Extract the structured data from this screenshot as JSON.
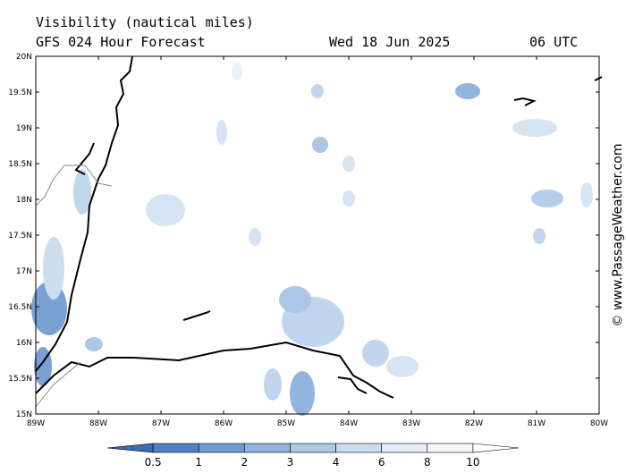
{
  "header": {
    "title": "Visibility (nautical miles)",
    "subtitle": "GFS 024 Hour Forecast",
    "date": "Wed 18 Jun 2025",
    "time": "06 UTC"
  },
  "map": {
    "lat_labels": [
      "20N",
      "19.5N",
      "19N",
      "18.5N",
      "18N",
      "17.5N",
      "17N",
      "16.5N",
      "16N",
      "15.5N",
      "15N"
    ],
    "lon_labels": [
      "89W",
      "88W",
      "87W",
      "86W",
      "85W",
      "84W",
      "83W",
      "82W",
      "81W",
      "80W"
    ]
  },
  "colorbar": {
    "levels": [
      0.5,
      1,
      2,
      3,
      4,
      6,
      8,
      10
    ],
    "colors": [
      "#3a6db2",
      "#4f82c4",
      "#6f9bd2",
      "#8fb3de",
      "#adc8e8",
      "#cadcf0",
      "#e3edf8",
      "#f5f8fc",
      "#ffffff"
    ]
  },
  "credit": "© www.PassageWeather.com"
}
